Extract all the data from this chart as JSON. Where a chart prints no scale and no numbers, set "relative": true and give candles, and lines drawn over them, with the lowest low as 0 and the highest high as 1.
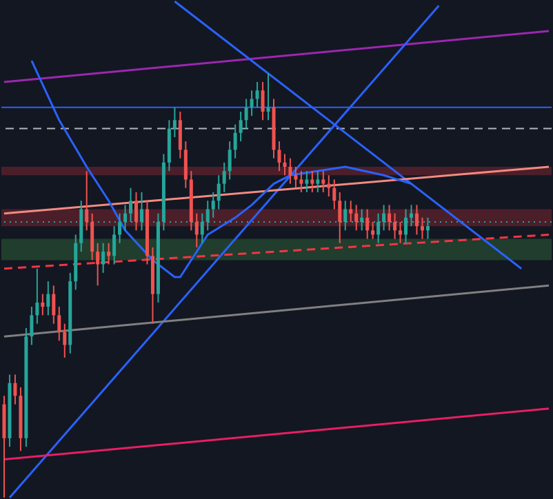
{
  "chart_data": {
    "type": "candlestick",
    "relative": true,
    "categories": [
      null,
      null,
      null,
      null,
      null,
      null,
      null,
      null,
      null,
      null,
      null,
      null,
      null,
      null,
      null,
      null,
      null,
      null,
      null,
      null,
      null,
      null,
      null,
      null,
      null,
      null,
      null,
      null,
      null,
      null,
      null,
      null,
      null,
      null,
      null,
      null,
      null,
      null,
      null,
      null,
      null,
      null,
      null,
      null,
      null,
      null,
      null,
      null,
      null,
      null,
      null,
      null,
      null,
      null,
      null,
      null,
      null,
      null,
      null,
      null,
      null,
      null,
      null,
      null,
      null,
      null,
      null,
      null,
      null,
      null,
      null,
      null,
      null,
      null,
      null,
      null,
      null,
      null,
      null,
      null,
      null,
      null,
      null,
      null,
      null,
      null,
      null,
      null,
      null,
      null,
      null,
      null,
      null,
      null,
      null,
      null,
      null,
      null,
      null,
      null
    ],
    "colors": [
      "#ef5350",
      "#26a69a",
      "#ef5350",
      "#ef5350",
      "#26a69a",
      "#26a69a",
      "#26a69a",
      "#ef5350",
      "#26a69a",
      "#ef5350",
      "#ef5350",
      "#ef5350",
      "#26a69a",
      "#26a69a",
      "#26a69a",
      "#ef5350",
      "#ef5350",
      "#ef5350",
      "#26a69a",
      "#ef5350",
      "#26a69a",
      "#26a69a",
      "#26a69a",
      "#26a69a",
      "#ef5350",
      "#26a69a",
      "#ef5350",
      "#ef5350",
      "#26a69a",
      "#26a69a",
      "#26a69a",
      "#26a69a",
      "#ef5350",
      "#ef5350",
      "#ef5350",
      "#ef5350",
      "#26a69a",
      "#26a69a",
      "#26a69a",
      "#26a69a",
      "#26a69a",
      "#26a69a",
      "#26a69a",
      "#26a69a",
      "#26a69a",
      "#26a69a",
      "#26a69a",
      "#ef5350",
      "#26a69a",
      "#ef5350",
      "#ef5350",
      "#ef5350",
      "#ef5350",
      "#ef5350",
      "#ef5350",
      "#26a69a",
      "#ef5350",
      "#26a69a",
      "#ef5350",
      "#ef5350",
      "#ef5350",
      "#ef5350",
      "#26a69a",
      "#ef5350",
      "#ef5350",
      "#26a69a",
      "#ef5350",
      "#ef5350",
      "#26a69a",
      "#26a69a",
      "#ef5350",
      "#ef5350",
      "#ef5350",
      "#26a69a",
      "#26a69a",
      "#ef5350",
      "#ef5350",
      "#26a69a",
      null,
      null,
      null,
      null,
      null,
      null,
      null,
      null,
      null,
      null,
      null,
      null,
      null,
      null,
      null,
      null,
      null,
      null,
      null,
      null,
      null,
      null
    ],
    "ohlc": [
      [
        0.22,
        0.24,
        0,
        0.14
      ],
      [
        0.14,
        0.29,
        0.12,
        0.27
      ],
      [
        0.27,
        0.29,
        0.22,
        0.24
      ],
      [
        0.24,
        0.26,
        0.11,
        0.14
      ],
      [
        0.14,
        0.4,
        0.12,
        0.38
      ],
      [
        0.38,
        0.45,
        0.36,
        0.43
      ],
      [
        0.43,
        0.54,
        0.41,
        0.46
      ],
      [
        0.46,
        0.48,
        0.43,
        0.45
      ],
      [
        0.45,
        0.51,
        0.43,
        0.48
      ],
      [
        0.48,
        0.5,
        0.41,
        0.43
      ],
      [
        0.43,
        0.45,
        0.37,
        0.39
      ],
      [
        0.39,
        0.41,
        0.33,
        0.36
      ],
      [
        0.36,
        0.53,
        0.34,
        0.51
      ],
      [
        0.51,
        0.62,
        0.49,
        0.6
      ],
      [
        0.6,
        0.7,
        0.58,
        0.68
      ],
      [
        0.68,
        0.77,
        0.63,
        0.65
      ],
      [
        0.65,
        0.67,
        0.56,
        0.58
      ],
      [
        0.58,
        0.6,
        0.5,
        0.55
      ],
      [
        0.55,
        0.6,
        0.53,
        0.58
      ],
      [
        0.58,
        0.6,
        0.55,
        0.57
      ],
      [
        0.57,
        0.64,
        0.55,
        0.62
      ],
      [
        0.62,
        0.67,
        0.6,
        0.65
      ],
      [
        0.65,
        0.69,
        0.63,
        0.67
      ],
      [
        0.67,
        0.73,
        0.65,
        0.7
      ],
      [
        0.7,
        0.72,
        0.63,
        0.65
      ],
      [
        0.65,
        0.72,
        0.63,
        0.68
      ],
      [
        0.68,
        0.7,
        0.55,
        0.57
      ],
      [
        0.57,
        0.59,
        0.41,
        0.48
      ],
      [
        0.48,
        0.67,
        0.46,
        0.65
      ],
      [
        0.65,
        0.81,
        0.63,
        0.79
      ],
      [
        0.79,
        0.89,
        0.77,
        0.87
      ],
      [
        0.87,
        0.92,
        0.85,
        0.89
      ],
      [
        0.89,
        0.91,
        0.8,
        0.82
      ],
      [
        0.82,
        0.84,
        0.73,
        0.75
      ],
      [
        0.75,
        0.77,
        0.63,
        0.65
      ],
      [
        0.65,
        0.67,
        0.59,
        0.62
      ],
      [
        0.62,
        0.67,
        0.6,
        0.65
      ],
      [
        0.65,
        0.7,
        0.63,
        0.68
      ],
      [
        0.68,
        0.72,
        0.66,
        0.7
      ],
      [
        0.7,
        0.76,
        0.68,
        0.74
      ],
      [
        0.74,
        0.79,
        0.72,
        0.77
      ],
      [
        0.77,
        0.84,
        0.75,
        0.82
      ],
      [
        0.82,
        0.88,
        0.8,
        0.86
      ],
      [
        0.86,
        0.91,
        0.84,
        0.89
      ],
      [
        0.89,
        0.94,
        0.87,
        0.92
      ],
      [
        0.92,
        0.96,
        0.9,
        0.94
      ],
      [
        0.94,
        0.98,
        0.92,
        0.96
      ],
      [
        0.96,
        0.98,
        0.89,
        0.91
      ],
      [
        0.91,
        1,
        0.89,
        0.92
      ],
      [
        0.92,
        0.94,
        0.8,
        0.82
      ],
      [
        0.82,
        0.84,
        0.77,
        0.79
      ],
      [
        0.79,
        0.81,
        0.76,
        0.78
      ],
      [
        0.78,
        0.8,
        0.74,
        0.76
      ],
      [
        0.76,
        0.78,
        0.73,
        0.75
      ],
      [
        0.75,
        0.77,
        0.72,
        0.74
      ],
      [
        0.74,
        0.77,
        0.72,
        0.75
      ],
      [
        0.75,
        0.77,
        0.72,
        0.74
      ],
      [
        0.74,
        0.77,
        0.72,
        0.75
      ],
      [
        0.75,
        0.77,
        0.72,
        0.74
      ],
      [
        0.74,
        0.76,
        0.71,
        0.73
      ],
      [
        0.73,
        0.75,
        0.68,
        0.7
      ],
      [
        0.7,
        0.72,
        0.6,
        0.65
      ],
      [
        0.65,
        0.7,
        0.63,
        0.68
      ],
      [
        0.68,
        0.7,
        0.65,
        0.67
      ],
      [
        0.67,
        0.69,
        0.63,
        0.65
      ],
      [
        0.65,
        0.68,
        0.63,
        0.66
      ],
      [
        0.66,
        0.68,
        0.61,
        0.63
      ],
      [
        0.63,
        0.65,
        0.61,
        0.62
      ],
      [
        0.62,
        0.67,
        0.6,
        0.65
      ],
      [
        0.65,
        0.69,
        0.63,
        0.67
      ],
      [
        0.67,
        0.69,
        0.63,
        0.65
      ],
      [
        0.65,
        0.67,
        0.61,
        0.63
      ],
      [
        0.63,
        0.65,
        0.6,
        0.62
      ],
      [
        0.62,
        0.68,
        0.6,
        0.66
      ],
      [
        0.66,
        0.69,
        0.64,
        0.67
      ],
      [
        0.67,
        0.69,
        0.62,
        0.64
      ],
      [
        0.64,
        0.66,
        0.61,
        0.63
      ],
      [
        0.63,
        0.66,
        0.61,
        0.64
      ],
      null,
      null,
      null,
      null,
      null,
      null,
      null,
      null,
      null,
      null,
      null,
      null,
      null,
      null,
      null,
      null,
      null,
      null,
      null,
      null,
      null,
      null
    ],
    "series": [
      {
        "type": "line",
        "color": "#9c27b0",
        "line_style": "solid",
        "values": [
          0.98,
          null,
          null,
          null,
          null,
          null,
          null,
          null,
          null,
          null,
          null,
          null,
          null,
          null,
          null,
          null,
          null,
          null,
          null,
          null,
          null,
          null,
          null,
          null,
          null,
          null,
          null,
          null,
          null,
          null,
          null,
          null,
          null,
          null,
          null,
          null,
          null,
          null,
          null,
          null,
          null,
          null,
          null,
          null,
          null,
          null,
          null,
          null,
          null,
          null,
          null,
          null,
          null,
          null,
          null,
          null,
          null,
          null,
          null,
          null,
          null,
          null,
          null,
          null,
          null,
          null,
          null,
          null,
          null,
          null,
          null,
          null,
          null,
          null,
          null,
          null,
          null,
          null,
          null,
          null,
          null,
          null,
          null,
          null,
          null,
          null,
          null,
          null,
          null,
          null,
          null,
          null,
          null,
          null,
          null,
          null,
          null,
          null,
          null,
          1.1
        ]
      },
      {
        "type": "line",
        "color": "#2962ff",
        "line_style": "solid",
        "values": [
          null,
          null,
          null,
          null,
          null,
          null,
          null,
          null,
          null,
          null,
          null,
          null,
          null,
          null,
          null,
          null,
          null,
          null,
          null,
          null,
          null,
          null,
          null,
          null,
          null,
          null,
          null,
          null,
          null,
          null,
          null,
          1.17,
          null,
          null,
          null,
          null,
          null,
          null,
          null,
          null,
          null,
          null,
          null,
          null,
          null,
          null,
          null,
          null,
          null,
          null,
          null,
          null,
          null,
          null,
          null,
          null,
          null,
          null,
          null,
          null,
          null,
          null,
          null,
          null,
          null,
          null,
          null,
          null,
          null,
          null,
          null,
          null,
          null,
          null,
          null,
          null,
          null,
          null,
          null,
          null,
          null,
          null,
          null,
          null,
          null,
          null,
          null,
          null,
          null,
          null,
          null,
          null,
          null,
          null,
          0.54,
          null,
          null,
          null,
          null,
          null
        ]
      },
      {
        "type": "line",
        "color": "#2962ff",
        "line_style": "solid",
        "values": [
          null,
          0,
          null,
          null,
          null,
          null,
          null,
          null,
          null,
          null,
          null,
          null,
          null,
          null,
          null,
          null,
          null,
          null,
          null,
          null,
          null,
          null,
          null,
          null,
          null,
          null,
          null,
          null,
          null,
          null,
          null,
          null,
          null,
          null,
          null,
          null,
          null,
          null,
          null,
          null,
          null,
          null,
          null,
          null,
          null,
          null,
          null,
          null,
          null,
          null,
          null,
          null,
          null,
          null,
          null,
          null,
          null,
          null,
          null,
          null,
          null,
          null,
          null,
          null,
          null,
          null,
          null,
          null,
          null,
          null,
          null,
          null,
          null,
          null,
          null,
          null,
          null,
          null,
          null,
          1.16,
          null,
          null,
          null,
          null,
          null,
          null,
          null,
          null,
          null,
          null,
          null,
          null,
          null,
          null,
          null,
          null,
          null,
          null,
          null,
          null
        ]
      },
      {
        "type": "line",
        "color": "#f28b82",
        "line_style": "solid",
        "values": [
          0.67,
          null,
          null,
          null,
          null,
          null,
          null,
          null,
          null,
          null,
          null,
          null,
          null,
          null,
          null,
          null,
          null,
          null,
          null,
          null,
          null,
          null,
          null,
          null,
          null,
          null,
          null,
          null,
          null,
          null,
          null,
          null,
          null,
          null,
          null,
          null,
          null,
          null,
          null,
          null,
          null,
          null,
          null,
          null,
          null,
          null,
          null,
          null,
          null,
          null,
          null,
          null,
          null,
          null,
          null,
          null,
          null,
          null,
          null,
          null,
          null,
          null,
          null,
          null,
          null,
          null,
          null,
          null,
          null,
          null,
          null,
          null,
          null,
          null,
          null,
          null,
          null,
          null,
          null,
          null,
          null,
          null,
          null,
          null,
          null,
          null,
          null,
          null,
          null,
          null,
          null,
          null,
          null,
          null,
          null,
          null,
          null,
          null,
          null,
          0.78
        ]
      },
      {
        "type": "line",
        "color": "#f23645",
        "line_style": "dashed",
        "values": [
          0.54,
          null,
          null,
          null,
          null,
          null,
          null,
          null,
          null,
          null,
          null,
          null,
          null,
          null,
          null,
          null,
          null,
          null,
          null,
          null,
          null,
          null,
          null,
          null,
          null,
          null,
          null,
          null,
          null,
          null,
          null,
          null,
          null,
          null,
          null,
          null,
          null,
          null,
          null,
          null,
          null,
          null,
          null,
          null,
          null,
          null,
          null,
          null,
          null,
          null,
          null,
          null,
          null,
          null,
          null,
          null,
          null,
          null,
          null,
          null,
          null,
          null,
          null,
          null,
          null,
          null,
          null,
          null,
          null,
          null,
          null,
          null,
          null,
          null,
          null,
          null,
          null,
          null,
          null,
          null,
          null,
          null,
          null,
          null,
          null,
          null,
          null,
          null,
          null,
          null,
          null,
          null,
          null,
          null,
          null,
          null,
          null,
          null,
          null,
          0.62
        ]
      },
      {
        "type": "line",
        "color": "#808080",
        "line_style": "solid",
        "values": [
          0.38,
          null,
          null,
          null,
          null,
          null,
          null,
          null,
          null,
          null,
          null,
          null,
          null,
          null,
          null,
          null,
          null,
          null,
          null,
          null,
          null,
          null,
          null,
          null,
          null,
          null,
          null,
          null,
          null,
          null,
          null,
          null,
          null,
          null,
          null,
          null,
          null,
          null,
          null,
          null,
          null,
          null,
          null,
          null,
          null,
          null,
          null,
          null,
          null,
          null,
          null,
          null,
          null,
          null,
          null,
          null,
          null,
          null,
          null,
          null,
          null,
          null,
          null,
          null,
          null,
          null,
          null,
          null,
          null,
          null,
          null,
          null,
          null,
          null,
          null,
          null,
          null,
          null,
          null,
          null,
          null,
          null,
          null,
          null,
          null,
          null,
          null,
          null,
          null,
          null,
          null,
          null,
          null,
          null,
          null,
          null,
          null,
          null,
          null,
          0.5
        ]
      },
      {
        "type": "line",
        "color": "#e91e63",
        "line_style": "solid",
        "values": [
          0.09,
          null,
          null,
          null,
          null,
          null,
          null,
          null,
          null,
          null,
          null,
          null,
          null,
          null,
          null,
          null,
          null,
          null,
          null,
          null,
          null,
          null,
          null,
          null,
          null,
          null,
          null,
          null,
          null,
          null,
          null,
          null,
          null,
          null,
          null,
          null,
          null,
          null,
          null,
          null,
          null,
          null,
          null,
          null,
          null,
          null,
          null,
          null,
          null,
          null,
          null,
          null,
          null,
          null,
          null,
          null,
          null,
          null,
          null,
          null,
          null,
          null,
          null,
          null,
          null,
          null,
          null,
          null,
          null,
          null,
          null,
          null,
          null,
          null,
          null,
          null,
          null,
          null,
          null,
          null,
          null,
          null,
          null,
          null,
          null,
          null,
          null,
          null,
          null,
          null,
          null,
          null,
          null,
          null,
          null,
          null,
          null,
          null,
          null,
          0.21
        ]
      },
      {
        "type": "line",
        "color": "#2962ff",
        "line_style": "solid",
        "values": [
          null,
          null,
          null,
          null,
          null,
          1.03,
          null,
          null,
          null,
          null,
          0.89,
          null,
          null,
          null,
          null,
          0.78,
          null,
          null,
          null,
          0.7,
          null,
          null,
          0.63,
          null,
          null,
          null,
          null,
          0.56,
          null,
          null,
          null,
          0.52,
          0.52,
          null,
          null,
          null,
          null,
          0.62,
          null,
          null,
          null,
          null,
          0.66,
          null,
          null,
          0.69,
          null,
          null,
          null,
          0.74,
          null,
          null,
          0.76,
          null,
          null,
          null,
          null,
          null,
          null,
          null,
          null,
          null,
          0.78,
          null,
          null,
          null,
          null,
          null,
          null,
          0.76,
          null,
          null,
          null,
          null,
          0.74,
          null,
          null,
          null,
          null,
          null,
          null,
          null,
          null,
          null,
          null,
          null,
          null,
          null,
          null,
          null,
          null,
          null,
          null,
          null,
          null,
          null,
          null,
          null,
          null,
          null
        ]
      }
    ],
    "ref_lines": [
      {
        "axis": "y",
        "value": 0.92,
        "color": "#2962ff",
        "line_style": "solid"
      },
      {
        "axis": "y",
        "value": 0.87,
        "color": "#b2b5be",
        "line_style": "dashed"
      },
      {
        "axis": "y",
        "value": 0.65,
        "color": "#26a69a",
        "line_style": "dotted"
      }
    ],
    "bands": [
      {
        "axis": "y",
        "from": 0.64,
        "to": 0.68,
        "color": "#f23645"
      },
      {
        "axis": "y",
        "from": 0.56,
        "to": 0.61,
        "color": "#4caf50"
      },
      {
        "axis": "y",
        "from": 0.76,
        "to": 0.78,
        "color": "#f23645"
      }
    ]
  }
}
